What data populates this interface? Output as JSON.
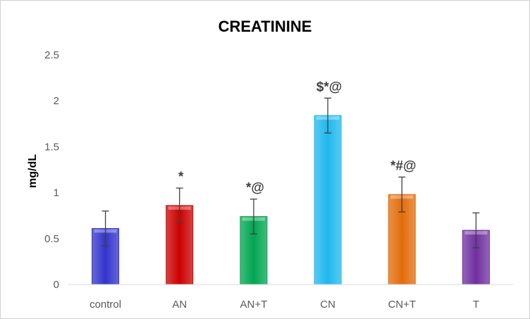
{
  "chart_data": {
    "type": "bar",
    "title": "CREATININE",
    "xlabel": "",
    "ylabel": "mg/dL",
    "ylim": [
      0,
      2.5
    ],
    "yticks": [
      0,
      0.5,
      1,
      1.5,
      2,
      2.5
    ],
    "ytick_labels": [
      "0",
      "0.5",
      "1",
      "1.5",
      "2",
      "2.5"
    ],
    "grid": false,
    "legend": "none",
    "categories": [
      "control",
      "AN",
      "AN+T",
      "CN",
      "CN+T",
      "T"
    ],
    "values": [
      0.61,
      0.86,
      0.74,
      1.84,
      0.98,
      0.59
    ],
    "errors": [
      0.19,
      0.19,
      0.19,
      0.19,
      0.19,
      0.19
    ],
    "annotations": [
      "",
      "*",
      "*@",
      "$*@",
      "*#@",
      ""
    ],
    "colors": [
      "#3333cc",
      "#cc0000",
      "#00a651",
      "#1fb8ee",
      "#e36c0a",
      "#7030a0"
    ]
  }
}
